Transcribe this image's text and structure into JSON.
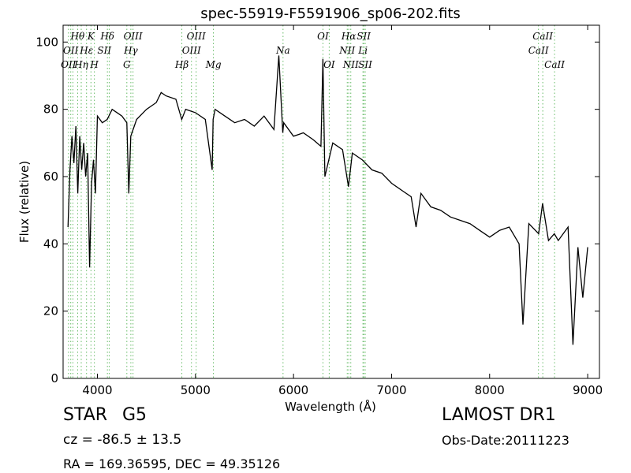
{
  "chart_data": {
    "type": "line",
    "title": "spec-55919-F5591906_sp06-202.fits",
    "xlabel": "Wavelength (Å)",
    "ylabel": "Flux (relative)",
    "xlim": [
      3650,
      9120
    ],
    "ylim": [
      0,
      105
    ],
    "xticks": [
      4000,
      5000,
      6000,
      7000,
      8000,
      9000
    ],
    "yticks": [
      0,
      20,
      40,
      60,
      80,
      100
    ],
    "grid": false,
    "series": [
      {
        "x": [
          3700,
          3720,
          3740,
          3760,
          3780,
          3800,
          3820,
          3840,
          3860,
          3880,
          3900,
          3920,
          3940,
          3960,
          3980,
          4000,
          4050,
          4100,
          4150,
          4200,
          4250,
          4300,
          4320,
          4340,
          4400,
          4500,
          4600,
          4650,
          4700,
          4800,
          4860,
          4900,
          5000,
          5100,
          5170,
          5180,
          5200,
          5300,
          5400,
          5500,
          5600,
          5700,
          5800,
          5850,
          5890,
          5900,
          6000,
          6100,
          6200,
          6280,
          6300,
          6320,
          6400,
          6500,
          6560,
          6600,
          6700,
          6800,
          6900,
          7000,
          7100,
          7200,
          7250,
          7300,
          7400,
          7500,
          7600,
          7700,
          7800,
          7900,
          8000,
          8100,
          8200,
          8300,
          8340,
          8400,
          8500,
          8540,
          8600,
          8660,
          8700,
          8800,
          8850,
          8900,
          8950,
          9000
        ],
        "values": [
          45,
          62,
          72,
          64,
          75,
          55,
          72,
          62,
          70,
          60,
          67,
          33,
          58,
          65,
          55,
          78,
          76,
          77,
          80,
          79,
          78,
          76,
          55,
          72,
          77,
          80,
          82,
          85,
          84,
          83,
          77,
          80,
          79,
          77,
          62,
          77,
          80,
          78,
          76,
          77,
          75,
          78,
          74,
          96,
          73,
          76,
          72,
          73,
          71,
          69,
          95,
          60,
          70,
          68,
          57,
          67,
          65,
          62,
          61,
          58,
          56,
          54,
          45,
          55,
          51,
          50,
          48,
          47,
          46,
          44,
          42,
          44,
          45,
          40,
          16,
          46,
          43,
          52,
          41,
          43,
          41,
          45,
          10,
          39,
          24,
          39
        ]
      }
    ],
    "lines_left": [
      3705,
      3728,
      3750,
      3798,
      3835,
      3889,
      3934,
      3969,
      4102,
      4120,
      4300,
      4341,
      4363,
      4861,
      4959,
      5007,
      5183
    ],
    "lines_right": [
      5893,
      6300,
      6364,
      6548,
      6563,
      6584,
      6708,
      6716,
      6731,
      8498,
      8542,
      8662
    ],
    "line_labels": [
      {
        "text": "Hθ",
        "x": 3798,
        "row": 1
      },
      {
        "text": "K",
        "x": 3934,
        "row": 1
      },
      {
        "text": "Hδ",
        "x": 4102,
        "row": 1
      },
      {
        "text": "OIII",
        "x": 4363,
        "row": 1
      },
      {
        "text": "OIII",
        "x": 5007,
        "row": 1
      },
      {
        "text": "OI",
        "x": 6300,
        "row": 1
      },
      {
        "text": "Hα",
        "x": 6563,
        "row": 1
      },
      {
        "text": "SII",
        "x": 6716,
        "row": 1
      },
      {
        "text": "CaII",
        "x": 8542,
        "row": 1
      },
      {
        "text": "OII",
        "x": 3728,
        "row": 2
      },
      {
        "text": "Hε",
        "x": 3889,
        "row": 2
      },
      {
        "text": "SII",
        "x": 4070,
        "row": 2
      },
      {
        "text": "Hγ",
        "x": 4341,
        "row": 2
      },
      {
        "text": "OIII",
        "x": 4959,
        "row": 2
      },
      {
        "text": "Na",
        "x": 5893,
        "row": 2
      },
      {
        "text": "NII",
        "x": 6548,
        "row": 2
      },
      {
        "text": "Li",
        "x": 6708,
        "row": 2
      },
      {
        "text": "CaII",
        "x": 8498,
        "row": 2
      },
      {
        "text": "OII",
        "x": 3705,
        "row": 3
      },
      {
        "text": "Hη",
        "x": 3835,
        "row": 3
      },
      {
        "text": "H",
        "x": 3969,
        "row": 3
      },
      {
        "text": "G",
        "x": 4300,
        "row": 3
      },
      {
        "text": "Hβ",
        "x": 4861,
        "row": 3
      },
      {
        "text": "Mg",
        "x": 5183,
        "row": 3
      },
      {
        "text": "OI",
        "x": 6364,
        "row": 3
      },
      {
        "text": "NII",
        "x": 6584,
        "row": 3
      },
      {
        "text": "SII",
        "x": 6731,
        "row": 3
      },
      {
        "text": "CaII",
        "x": 8662,
        "row": 3
      }
    ],
    "colors": {
      "spectrum": "#000000",
      "lines": "#66bb66",
      "axes": "#000000"
    }
  },
  "info": {
    "class": "STAR",
    "subclass": "G5",
    "redshift": "cz = -86.5 ± 13.5",
    "coords": "RA = 169.36595, DEC = 49.35126",
    "survey": "LAMOST DR1",
    "obs_date": "Obs-Date:20111223"
  }
}
